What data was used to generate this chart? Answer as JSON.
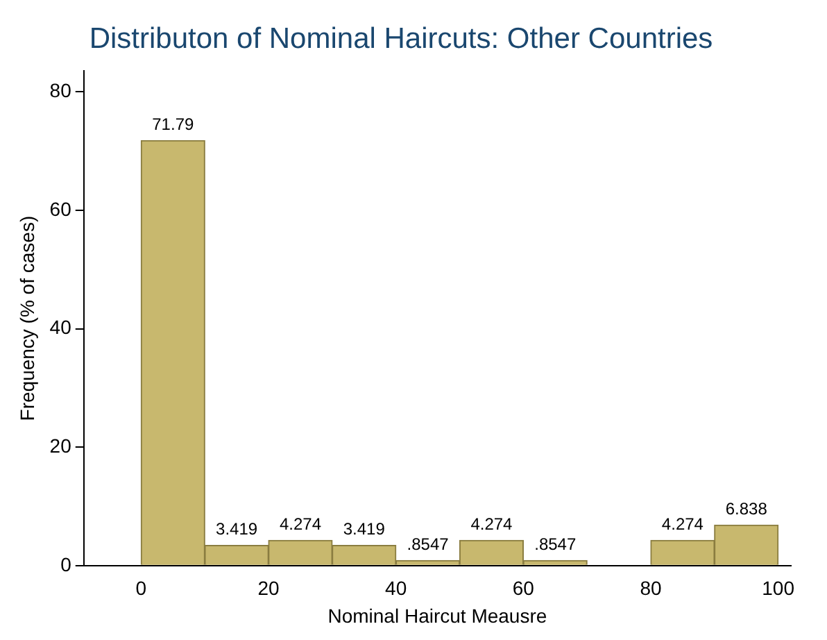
{
  "chart_data": {
    "type": "histogram",
    "title": "Distributon of Nominal Haircuts: Other Countries",
    "xlabel": "Nominal Haircut Meausre",
    "ylabel": "Frequency (% of cases)",
    "bins": [
      0,
      10,
      20,
      30,
      40,
      50,
      60,
      70,
      80,
      90,
      100
    ],
    "values": [
      71.79,
      3.419,
      4.274,
      3.419,
      0.8547,
      4.274,
      0.8547,
      0,
      4.274,
      6.838
    ],
    "value_labels": [
      "71.79",
      "3.419",
      "4.274",
      "3.419",
      ".8547",
      "4.274",
      ".8547",
      null,
      "4.274",
      "6.838"
    ],
    "color": "#c8b86e",
    "xlim": [
      -9,
      102
    ],
    "xticks": [
      0,
      20,
      40,
      60,
      80,
      100
    ],
    "ylim": [
      0,
      83.5
    ],
    "yticks": [
      0,
      20,
      40,
      60,
      80
    ],
    "grid": false,
    "legend": false
  }
}
